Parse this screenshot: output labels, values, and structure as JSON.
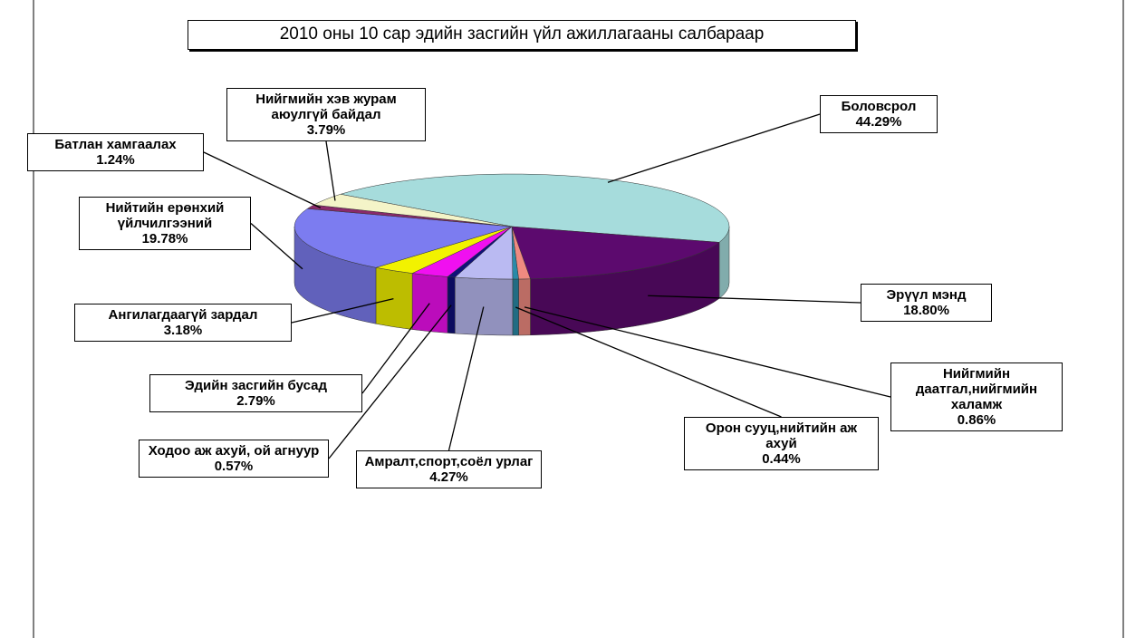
{
  "chart_data": {
    "type": "pie3d",
    "title": "2010 оны 10 сар эдийн засгийн үйл ажиллагааны салбараар",
    "categories": [
      "Боловсрол",
      "Эрүүл мэнд",
      "Нийгмийн даатгал,нийгмийн халамж",
      "Орон сууц,нийтийн аж ахуй",
      "Амралт,спорт,соёл урлаг",
      "Ходоо аж ахуй, ой агнуур",
      "Эдийн засгийн бусад",
      "Ангилагдаагүй зардал",
      "Нийтийн ерөнхий үйлчилгээний",
      "Батлан хамгаалах",
      "Нийгмийн хэв журам аюулгүй байдал"
    ],
    "values": [
      44.29,
      18.8,
      0.86,
      0.44,
      4.27,
      0.57,
      2.79,
      3.18,
      19.78,
      1.24,
      3.79
    ],
    "value_labels": [
      "44.29%",
      "18.80%",
      "0.86%",
      "0.44%",
      "4.27%",
      "0.57%",
      "2.79%",
      "3.18%",
      "19.78%",
      "1.24%",
      "3.79%"
    ],
    "colors": [
      "#a6dcdc",
      "#5c0a6e",
      "#f08a80",
      "#2a8aa8",
      "#babaf2",
      "#10107a",
      "#f010f0",
      "#f2f200",
      "#7c7cf0",
      "#8a2a6a",
      "#f4f4c8"
    ]
  }
}
